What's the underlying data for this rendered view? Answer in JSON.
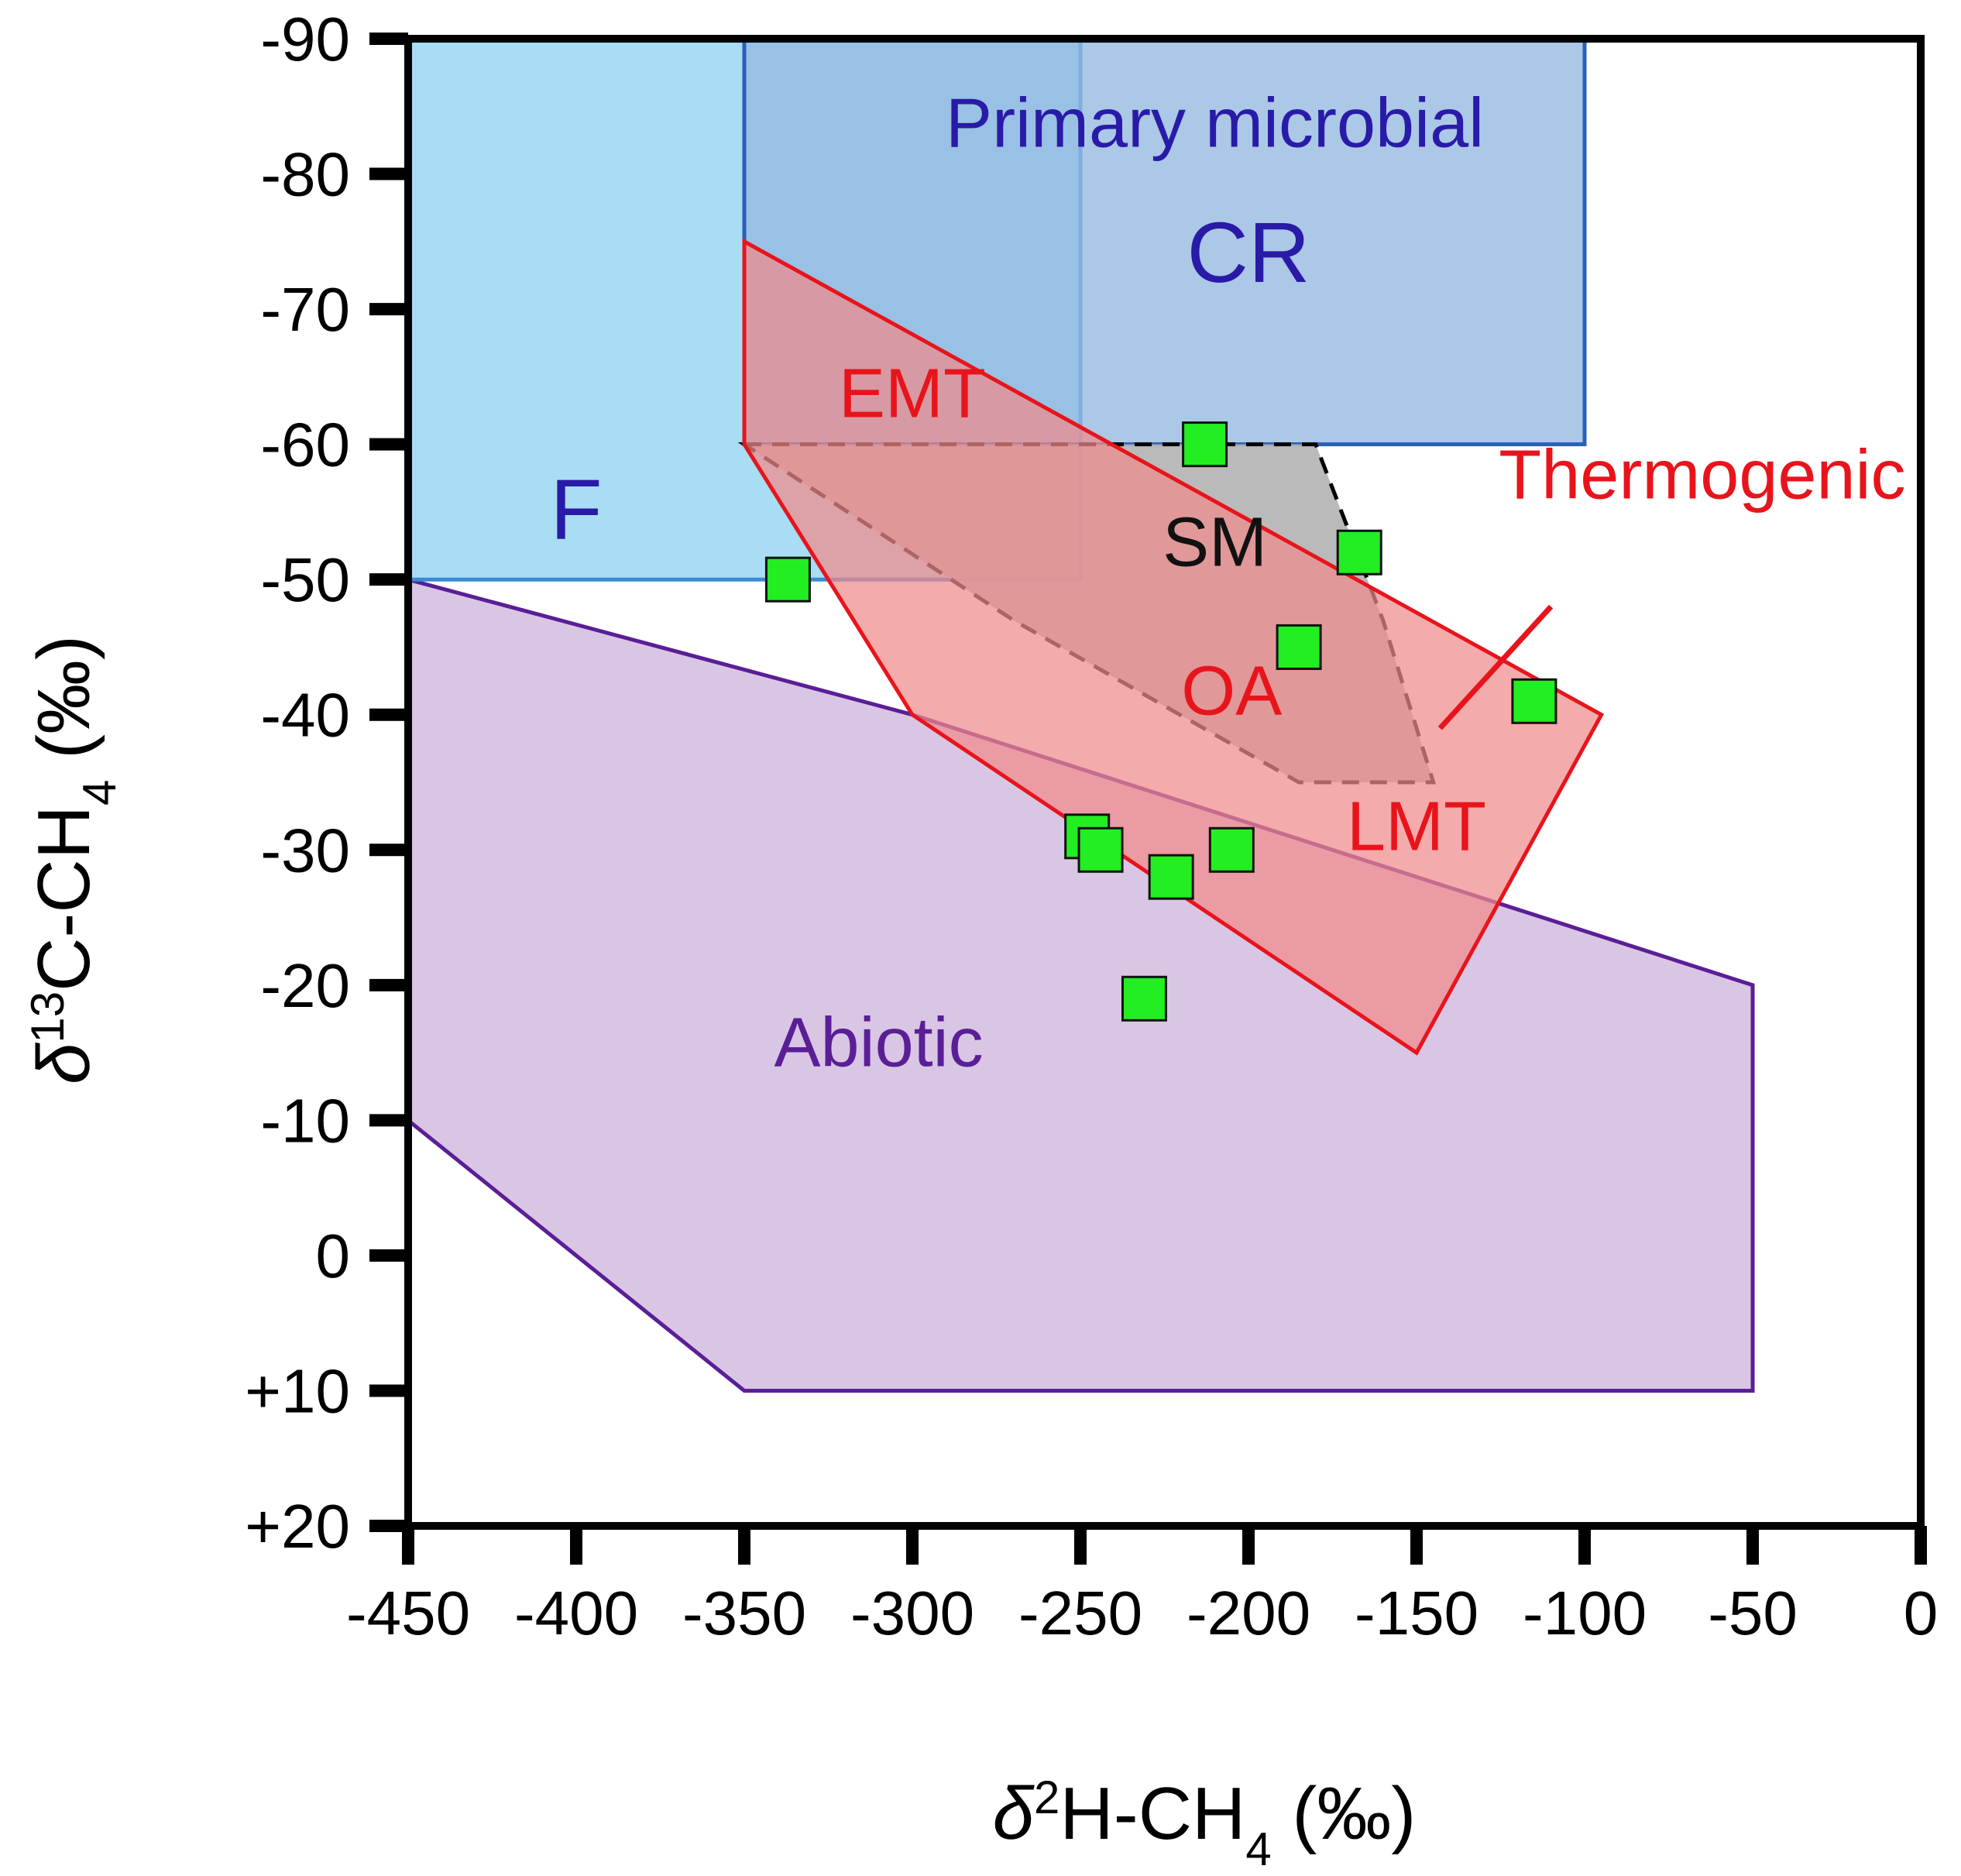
{
  "chart_data": {
    "type": "scatter",
    "title": "",
    "xlabel": {
      "delta": "δ",
      "sup": "2",
      "main": "H-CH",
      "sub": "4",
      "unit": " (‰)"
    },
    "ylabel": {
      "delta": "δ",
      "sup": "13",
      "main": "C-CH",
      "sub": "4",
      "unit": " (‰)"
    },
    "xlim": [
      -450,
      0
    ],
    "ylim": [
      20,
      -90
    ],
    "x_ticks": [
      {
        "value": -450,
        "label": "-450"
      },
      {
        "value": -400,
        "label": "-400"
      },
      {
        "value": -350,
        "label": "-350"
      },
      {
        "value": -300,
        "label": "-300"
      },
      {
        "value": -250,
        "label": "-250"
      },
      {
        "value": -200,
        "label": "-200"
      },
      {
        "value": -150,
        "label": "-150"
      },
      {
        "value": -100,
        "label": "-100"
      },
      {
        "value": -50,
        "label": "-50"
      },
      {
        "value": 0,
        "label": "0"
      }
    ],
    "y_ticks": [
      {
        "value": -90,
        "label": "-90"
      },
      {
        "value": -80,
        "label": "-80"
      },
      {
        "value": -70,
        "label": "-70"
      },
      {
        "value": -60,
        "label": "-60"
      },
      {
        "value": -50,
        "label": "-50"
      },
      {
        "value": -40,
        "label": "-40"
      },
      {
        "value": -30,
        "label": "-30"
      },
      {
        "value": -20,
        "label": "-20"
      },
      {
        "value": -10,
        "label": "-10"
      },
      {
        "value": 0,
        "label": "0"
      },
      {
        "value": 10,
        "label": "+10"
      },
      {
        "value": 20,
        "label": "+20"
      }
    ],
    "regions": [
      {
        "name": "abiotic",
        "label": "Abiotic",
        "fill": "#d9c6e4",
        "stroke": "#5a1e96",
        "polygon": [
          [
            -450,
            -50
          ],
          [
            -300,
            -40
          ],
          [
            -50,
            -20
          ],
          [
            -50,
            10
          ],
          [
            -350,
            10
          ],
          [
            -450,
            -10
          ]
        ],
        "label_pos": [
          -310,
          -14
        ],
        "font_size": 90
      },
      {
        "name": "F",
        "label": "F",
        "fill": "#a8ddf4",
        "stroke": "#3a8ad6",
        "polygon": [
          [
            -450,
            -90
          ],
          [
            -250,
            -90
          ],
          [
            -250,
            -50
          ],
          [
            -450,
            -50
          ]
        ],
        "label_pos": [
          -400,
          -53
        ],
        "font_size": 110
      },
      {
        "name": "CR",
        "label": "CR",
        "fill": "#93b8e0",
        "stroke": "#2a5fb8",
        "opacity": 0.78,
        "polygon": [
          [
            -350,
            -90
          ],
          [
            -100,
            -90
          ],
          [
            -100,
            -60
          ],
          [
            -350,
            -60
          ]
        ],
        "label_pos": [
          -200,
          -72
        ],
        "font_size": 110
      },
      {
        "name": "SM",
        "label": "SM",
        "fill": "#b4b4b4",
        "stroke": "#000000",
        "dashed": true,
        "opacity": 0.92,
        "polygon": [
          [
            -350,
            -60
          ],
          [
            -180,
            -60
          ],
          [
            -160,
            -47
          ],
          [
            -145,
            -35
          ],
          [
            -185,
            -35
          ],
          [
            -270,
            -47
          ]
        ],
        "label_pos": [
          -210,
          -51
        ],
        "font_size": 90
      },
      {
        "name": "thermogenic",
        "label": "Thermogenic",
        "fill": "#f08a8a",
        "stroke": "#e8141c",
        "opacity": 0.72,
        "polygon": [
          [
            -350,
            -75
          ],
          [
            -95,
            -40
          ],
          [
            -150,
            -15
          ],
          [
            -300,
            -40
          ],
          [
            -350,
            -60
          ]
        ],
        "label_pos": [
          -65,
          -56
        ],
        "font_size": 90
      }
    ],
    "primary_microbial_label": {
      "text": "Primary microbial",
      "pos": [
        -210,
        -82
      ],
      "color": "#2a1aa8",
      "font_size": 90
    },
    "thermogenic_sublabels": [
      {
        "text": "EMT",
        "pos": [
          -300,
          -62
        ],
        "font_size": 90
      },
      {
        "text": "OA",
        "pos": [
          -205,
          -40
        ],
        "font_size": 90
      },
      {
        "text": "LMT",
        "pos": [
          -150,
          -30
        ],
        "font_size": 90
      }
    ],
    "thermogenic_pointer": {
      "from": [
        -110,
        -48
      ],
      "to": [
        -143,
        -39
      ],
      "color": "#e8141c"
    },
    "series": [
      {
        "name": "samples",
        "marker": "square",
        "color": "#22ee22",
        "points": [
          {
            "x": -337,
            "y": -50
          },
          {
            "x": -213,
            "y": -60
          },
          {
            "x": -167,
            "y": -52
          },
          {
            "x": -185,
            "y": -45
          },
          {
            "x": -115,
            "y": -41
          },
          {
            "x": -248,
            "y": -31
          },
          {
            "x": -244,
            "y": -30
          },
          {
            "x": -205,
            "y": -30
          },
          {
            "x": -223,
            "y": -28
          },
          {
            "x": -231,
            "y": -19
          }
        ]
      }
    ]
  }
}
